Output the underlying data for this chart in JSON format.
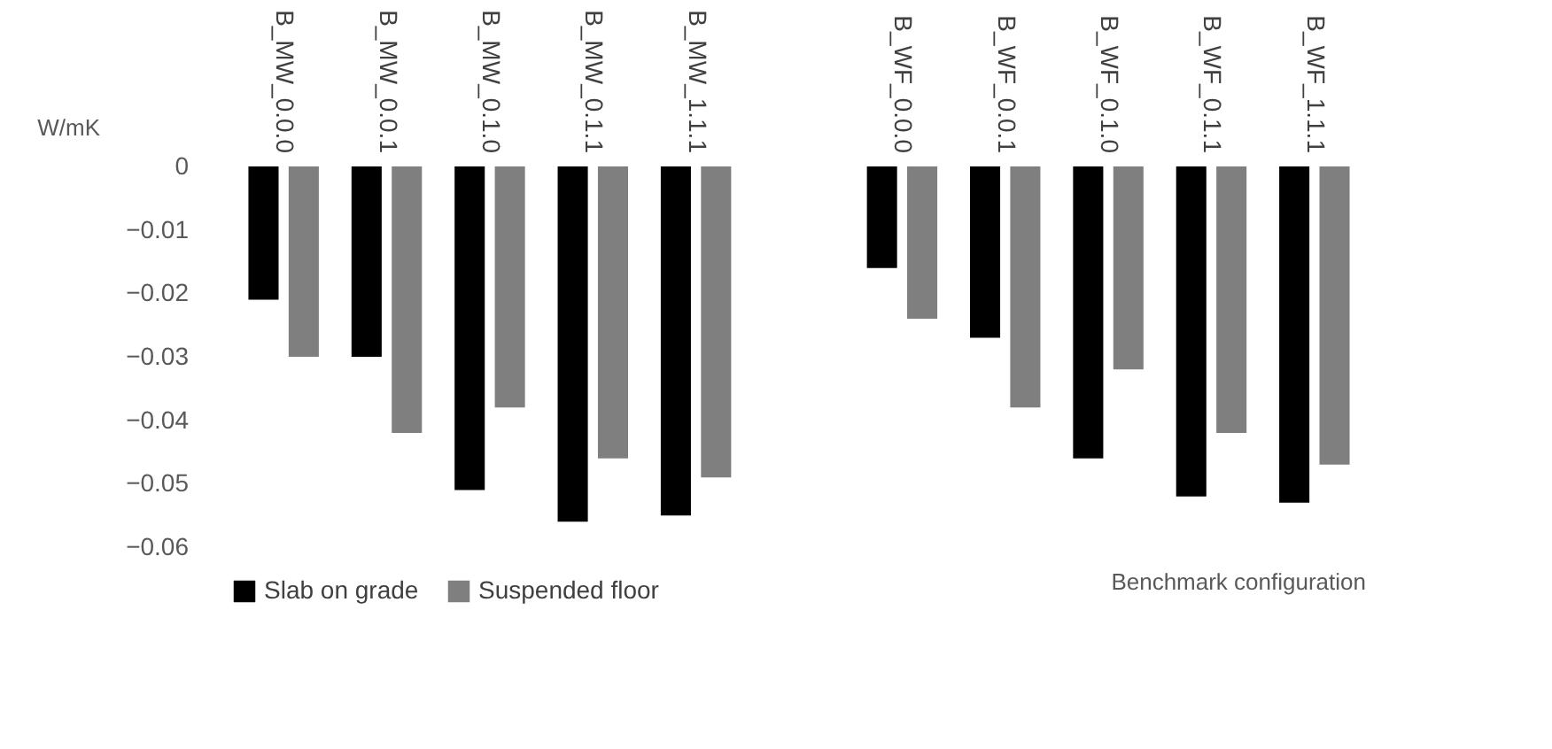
{
  "chart_data": {
    "type": "bar",
    "xlabel": "Benchmark configuration",
    "ylabel": "W/mK",
    "categories": [
      "B_MW_0.0.0",
      "B_MW_0.0.1",
      "B_MW_0.1.0",
      "B_MW_0.1.1",
      "B_MW_1.1.1",
      null,
      "B_WF_0.0.0",
      "B_WF_0.0.1",
      "B_WF_0.1.0",
      "B_WF_0.1.1",
      "B_WF_1.1.1"
    ],
    "series": [
      {
        "name": "Slab on grade",
        "color": "#000000",
        "values": [
          -0.021,
          -0.03,
          -0.051,
          -0.056,
          -0.055,
          null,
          -0.016,
          -0.027,
          -0.046,
          -0.052,
          -0.053
        ]
      },
      {
        "name": "Suspended floor",
        "color": "#7f7f7f",
        "values": [
          -0.03,
          -0.042,
          -0.038,
          -0.046,
          -0.049,
          null,
          -0.024,
          -0.038,
          -0.032,
          -0.042,
          -0.047
        ]
      }
    ],
    "ylim": [
      -0.06,
      0
    ],
    "yticks": [
      0,
      -0.01,
      -0.02,
      -0.03,
      -0.04,
      -0.05,
      -0.06
    ],
    "legend": "bottom"
  }
}
